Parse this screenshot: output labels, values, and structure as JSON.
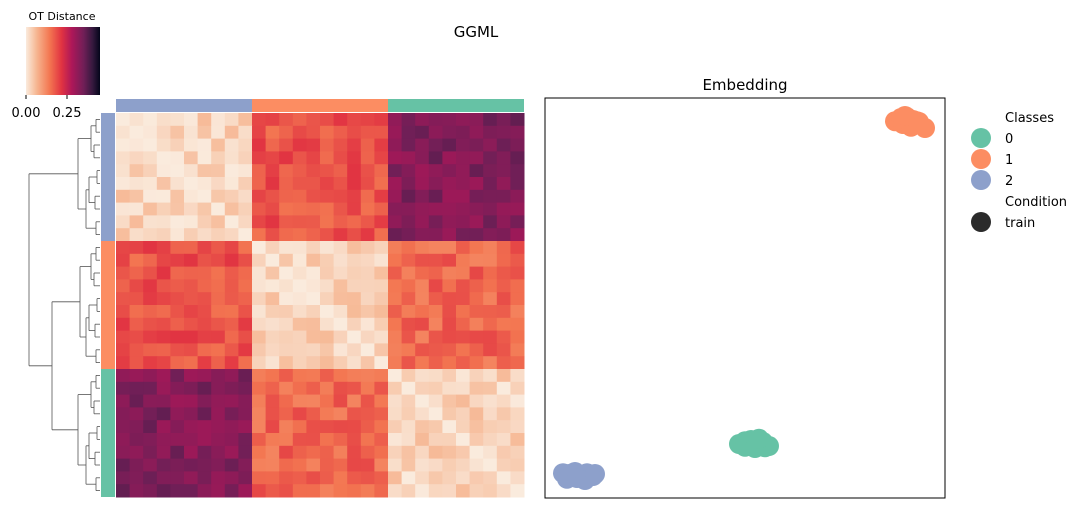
{
  "figure": {
    "title": "GGML"
  },
  "chart_data": [
    {
      "type": "heatmap",
      "colorbar": {
        "label": "OT Distance",
        "ticks": [
          "0.00",
          "0.25"
        ],
        "range": [
          0,
          0.45
        ],
        "colormap": "rocket_r"
      },
      "row_order_classes": [
        2,
        1,
        0
      ],
      "class_colors": {
        "0": "#66c2a5",
        "1": "#fc8d62",
        "2": "#8da0cb"
      },
      "samples_per_class": 10,
      "block_means": [
        [
          0.02,
          0.18,
          0.33
        ],
        [
          0.18,
          0.02,
          0.16
        ],
        [
          0.33,
          0.16,
          0.02
        ]
      ],
      "dendrogram": true
    },
    {
      "type": "scatter",
      "title": "Embedding",
      "xlim": [
        0,
        10
      ],
      "ylim": [
        0,
        10
      ],
      "series": [
        {
          "class": "0",
          "color": "#66c2a5",
          "x": [
            4.85,
            5.0,
            5.15,
            5.3,
            5.45,
            5.6,
            5.0,
            5.25,
            5.5,
            5.35
          ],
          "y": [
            1.35,
            1.42,
            1.45,
            1.38,
            1.4,
            1.3,
            1.28,
            1.25,
            1.27,
            1.48
          ]
        },
        {
          "class": "1",
          "color": "#fc8d62",
          "x": [
            8.75,
            8.9,
            9.05,
            9.2,
            9.35,
            9.5,
            8.95,
            9.15,
            9.3,
            9.0
          ],
          "y": [
            9.42,
            9.5,
            9.52,
            9.45,
            9.4,
            9.25,
            9.35,
            9.28,
            9.42,
            9.55
          ]
        },
        {
          "class": "2",
          "color": "#8da0cb",
          "x": [
            0.45,
            0.6,
            0.75,
            0.9,
            1.05,
            1.2,
            0.55,
            0.8,
            1.0,
            1.25
          ],
          "y": [
            0.62,
            0.6,
            0.65,
            0.58,
            0.62,
            0.55,
            0.48,
            0.5,
            0.45,
            0.6
          ]
        }
      ]
    }
  ],
  "legend": {
    "classes_title": "Classes",
    "classes": [
      {
        "label": "0",
        "color": "#66c2a5"
      },
      {
        "label": "1",
        "color": "#fc8d62"
      },
      {
        "label": "2",
        "color": "#8da0cb"
      }
    ],
    "condition_title": "Condition",
    "conditions": [
      {
        "label": "train",
        "color": "#2b2b2b"
      }
    ]
  }
}
